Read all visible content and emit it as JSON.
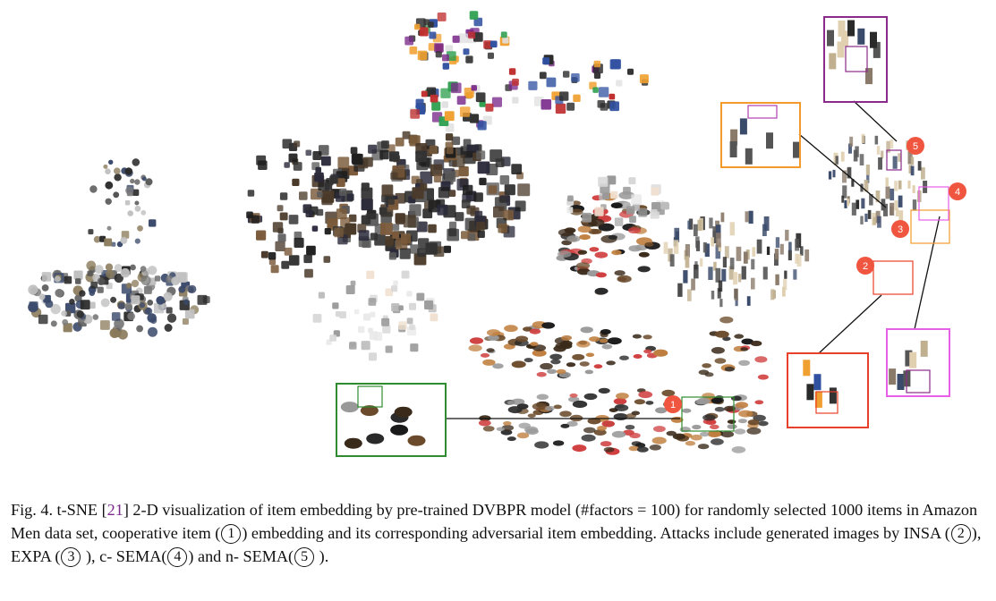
{
  "figure": {
    "description_badges": [
      {
        "label": "1",
        "color": "#f0553f"
      },
      {
        "label": "2",
        "color": "#f0553f"
      },
      {
        "label": "3",
        "color": "#f0553f"
      },
      {
        "label": "4",
        "color": "#f0553f"
      },
      {
        "label": "5",
        "color": "#f0553f"
      }
    ],
    "box_colors": {
      "cooperative": "#2e8b2e",
      "insa": "#e8402a",
      "expa": "#f39a2b",
      "c_sema": "#e65fe6",
      "n_sema": "#8a2a8a"
    }
  },
  "caption": {
    "fig_label": "Fig. 4.",
    "part1": "t-SNE [",
    "ref": "21",
    "part2": "] 2-D visualization of item embedding by pre-trained DVBPR model (#factors = 100) for randomly selected 1000 items in Amazon Men data set, cooperative item (",
    "c1": "1",
    "part3": ") embedding and its corresponding adversarial item embedding. Attacks include generated images by INSA (",
    "c2": "2",
    "part4": "), EXPA (",
    "c3": "3",
    "part5": " ), c- SEMA(",
    "c4": "4",
    "part6": ") and n- SEMA(",
    "c5": "5",
    "part7": " )."
  }
}
